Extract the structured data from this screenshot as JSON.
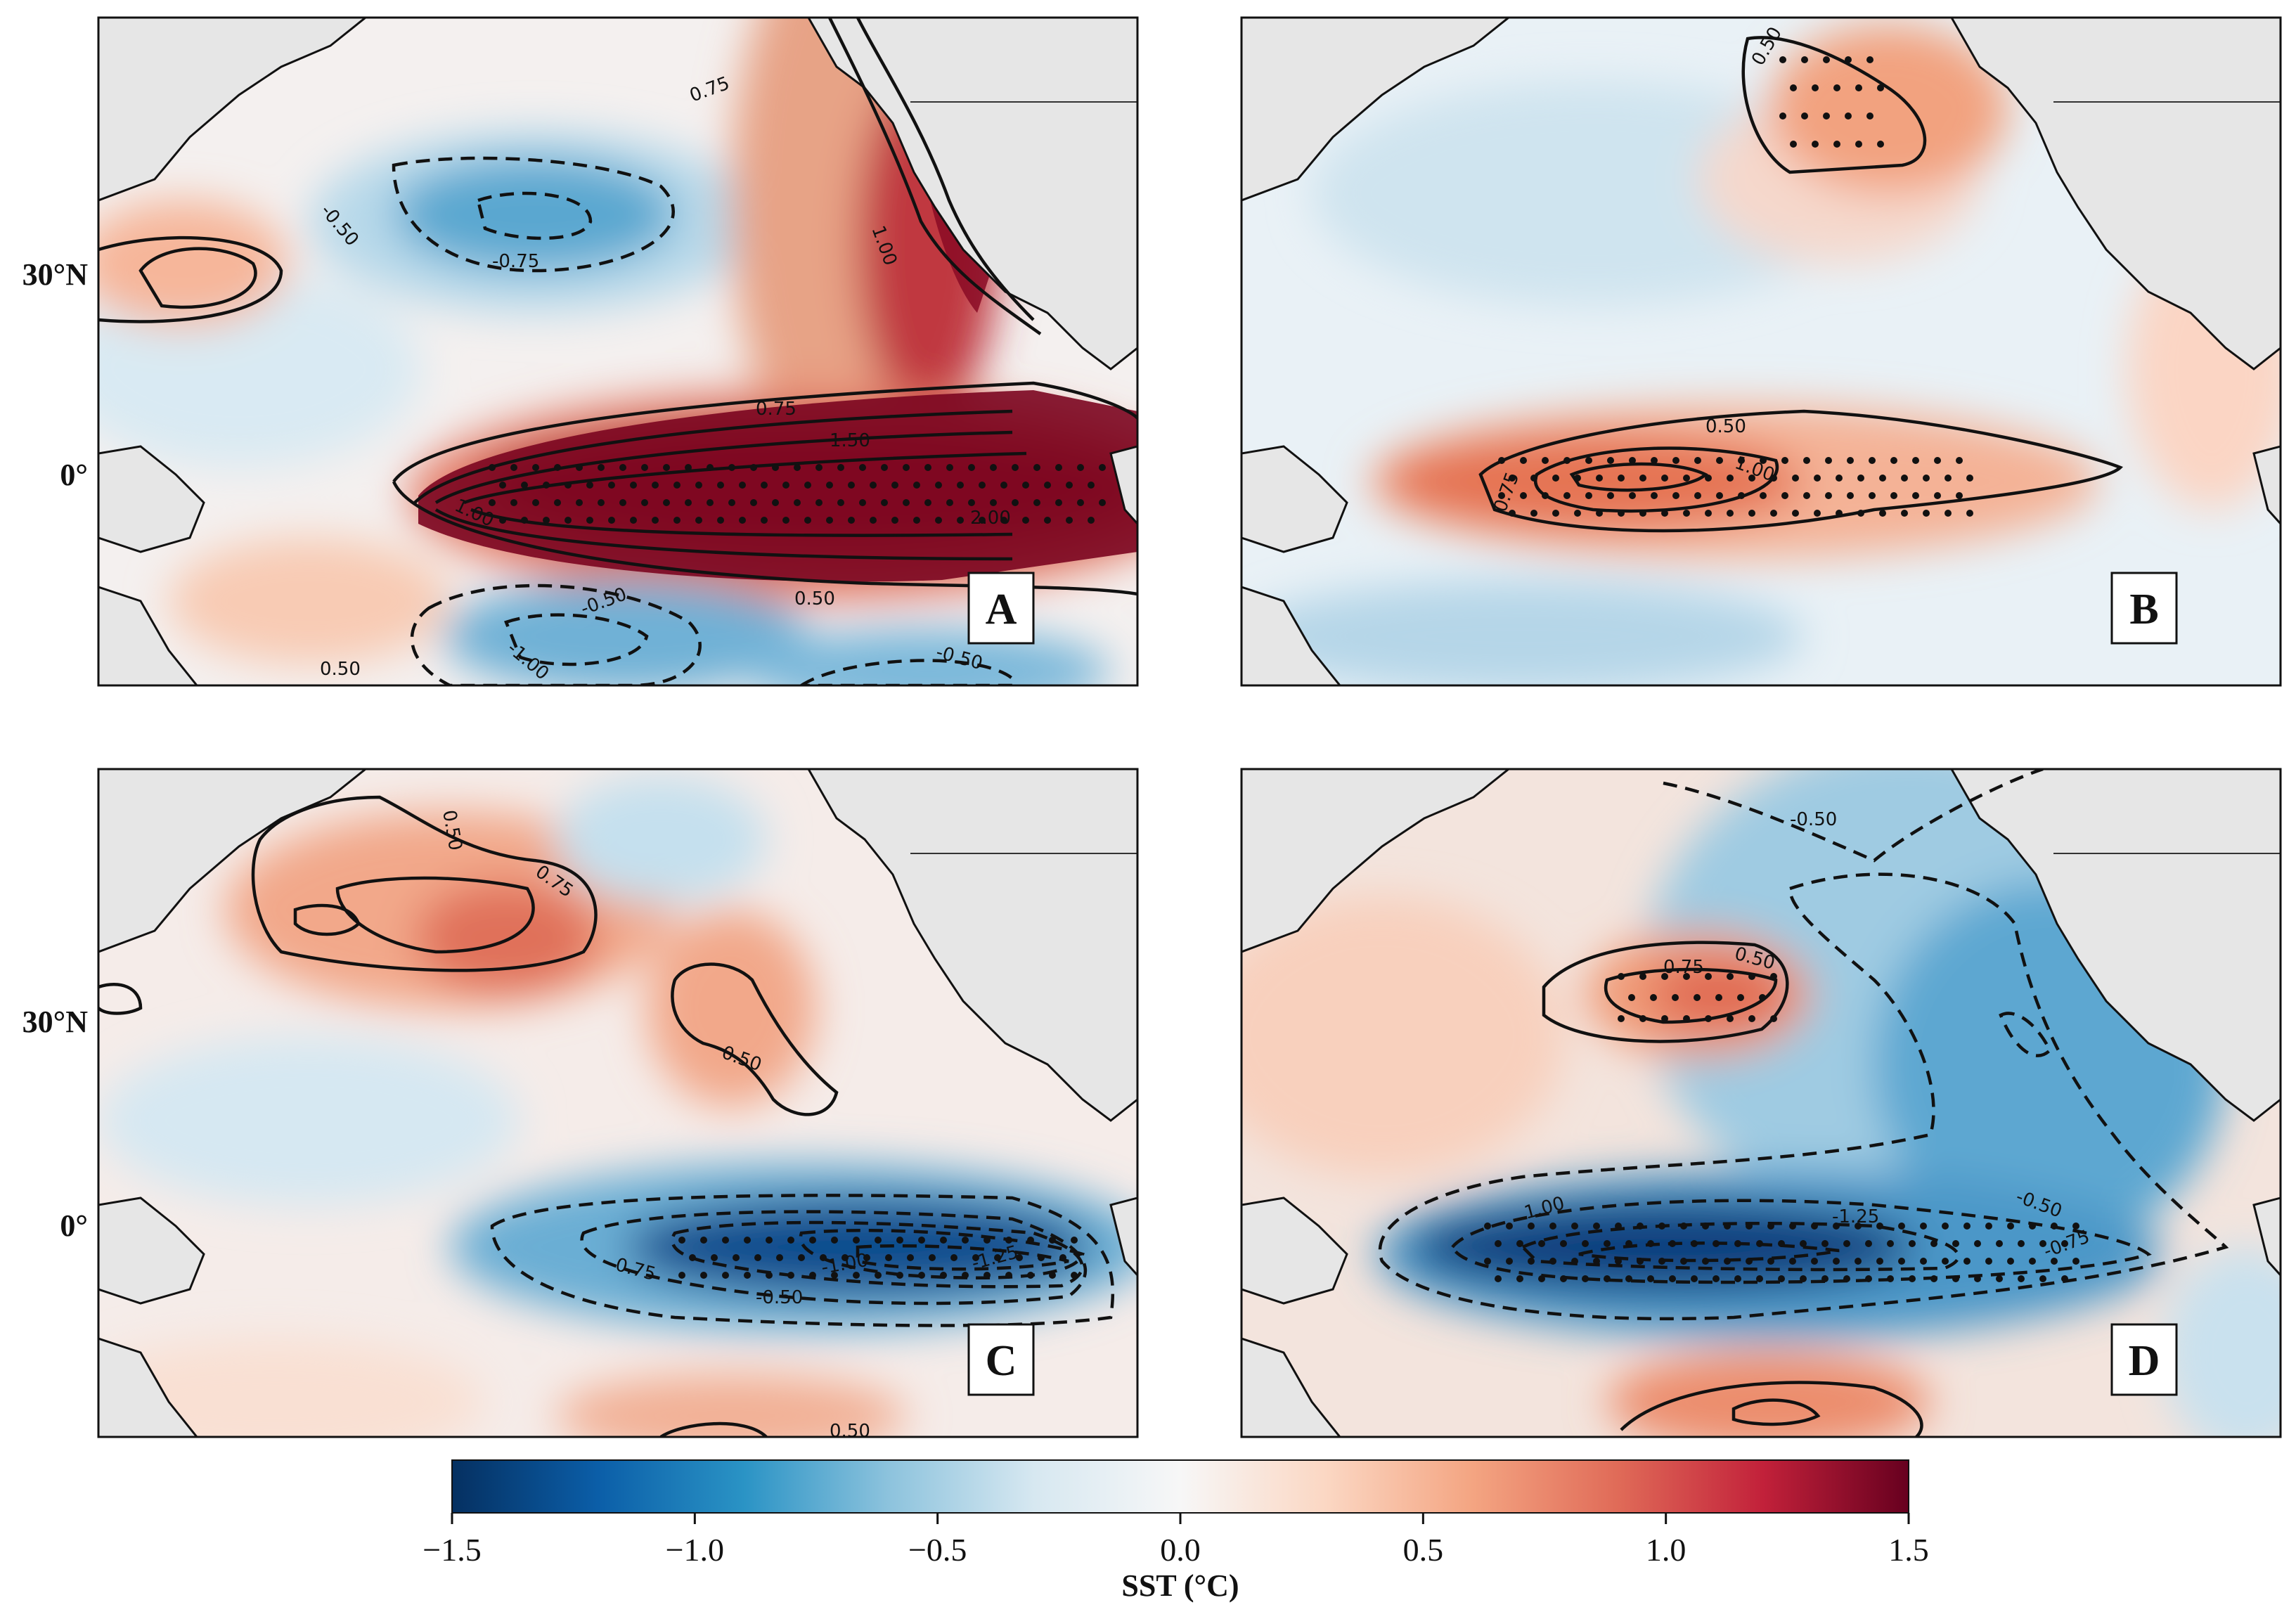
{
  "chart_data": {
    "type": "heatmap",
    "title": "",
    "panels": [
      {
        "label": "A",
        "lat_labels": [
          "30°N",
          "0°"
        ],
        "contour_labels": [
          "0.75",
          "-0.50",
          "-0.75",
          "1.00",
          "0.75",
          "1.50",
          "1.00",
          "2.00",
          "0.50",
          "-0.50",
          "-1.00",
          "-0.50",
          "0.50"
        ]
      },
      {
        "label": "B",
        "lat_labels": [],
        "contour_labels": [
          "0.50",
          "0.50",
          "0.75",
          "1.00"
        ]
      },
      {
        "label": "C",
        "lat_labels": [
          "30°N",
          "0°"
        ],
        "contour_labels": [
          "0.50",
          "0.75",
          "0.50",
          "-0.75",
          "-1.00",
          "-1.25",
          "-0.50",
          "0.50"
        ]
      },
      {
        "label": "D",
        "lat_labels": [],
        "contour_labels": [
          "-0.50",
          "0.75",
          "0.50",
          "1.00",
          "-1.25",
          "-0.50",
          "-0.75"
        ]
      }
    ],
    "colorbar": {
      "label": "SST (°C)",
      "vmin": -1.5,
      "vmax": 1.5,
      "ticks": [
        -1.5,
        -1.0,
        -0.5,
        0.0,
        0.5,
        1.0,
        1.5
      ],
      "tick_labels": [
        "−1.5",
        "−1.0",
        "−0.5",
        "0.0",
        "0.5",
        "1.0",
        "1.5"
      ],
      "colors": [
        "#053061",
        "#0b5ea8",
        "#2a93c5",
        "#8dc3dd",
        "#d7e8f1",
        "#f7f7f7",
        "#fbd7c3",
        "#f4a582",
        "#e06b58",
        "#c2213a",
        "#67001f"
      ]
    }
  }
}
